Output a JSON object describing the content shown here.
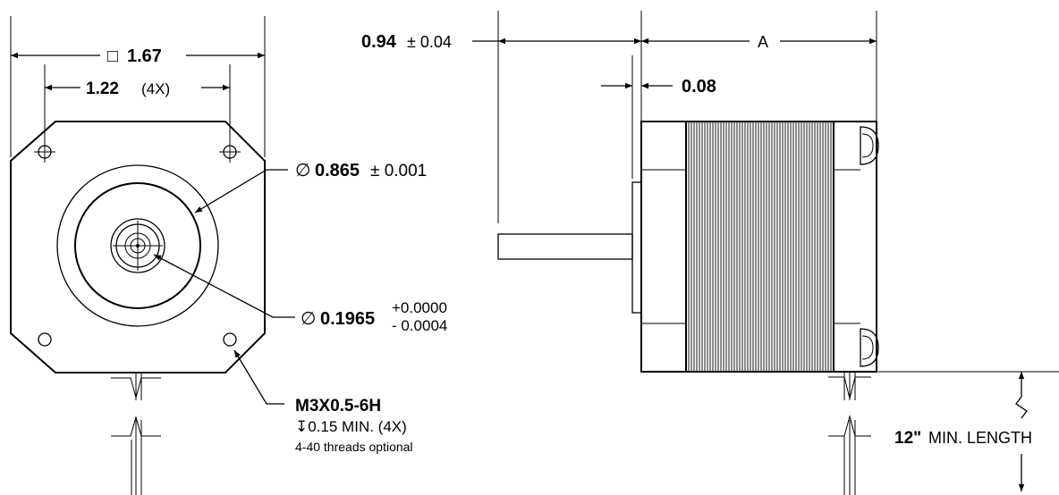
{
  "front_view": {
    "square_symbol": "□",
    "square_value": "1.67",
    "hole_spacing_value": "1.22",
    "hole_spacing_qty": "(4X)",
    "diameter_symbol": "∅",
    "pilot_value": "0.865",
    "pilot_tol": "± 0.001",
    "shaft_value": "0.1965",
    "shaft_tol_plus": "+0.0000",
    "shaft_tol_minus": "- 0.0004",
    "thread_spec": "M3X0.5-6H",
    "thread_depth": "↧0.15 MIN. (4X)",
    "thread_note": "4-40 threads optional"
  },
  "side_view": {
    "shaft_length_value": "0.94",
    "shaft_length_tol": "± 0.04",
    "length_label": "A",
    "pilot_depth_value": "0.08",
    "lead_length_value": "12\"",
    "lead_length_text": "MIN. LENGTH"
  }
}
